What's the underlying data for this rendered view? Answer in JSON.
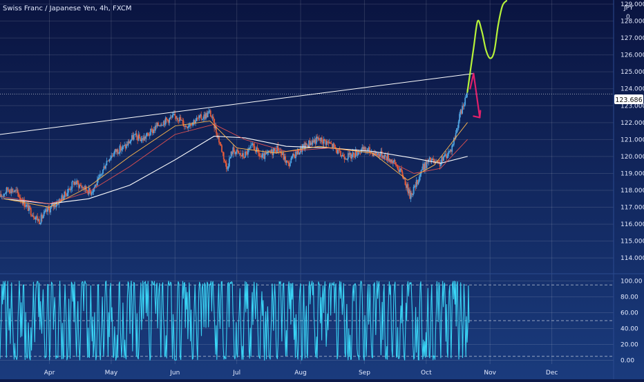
{
  "header": {
    "symbol_title": "Swiss Franc / Japanese Yen, 4h, FXCM",
    "currency": "JPY",
    "scale_mode": "0"
  },
  "colors": {
    "background_top": "#0a1440",
    "background_bottom": "#1a3b7d",
    "candle_up": "#4fa3e0",
    "candle_down": "#e25a3a",
    "ma_fast": "#ffb84d",
    "ma_mid": "#e05050",
    "ma_slow": "#ffffff",
    "trendline": "#ffffff",
    "projection_green": "#b6f23a",
    "projection_arrow": "#e0206a",
    "oscillator": "#3ad4f5",
    "price_label_bg": "#ffffff",
    "price_label_text": "#111111"
  },
  "chart_data": [
    {
      "type": "candlestick",
      "title": "",
      "ylim": [
        113.6,
        129.0
      ],
      "y_ticks": [
        "114.000",
        "115.000",
        "116.000",
        "117.000",
        "118.000",
        "119.000",
        "120.000",
        "121.000",
        "122.000",
        "123.000",
        "124.000",
        "125.000",
        "126.000",
        "127.000",
        "128.000",
        "129.000"
      ],
      "x_tick_labels": [
        "Apr",
        "May",
        "Jun",
        "Jul",
        "Aug",
        "Sep",
        "Oct",
        "Nov",
        "Dec"
      ],
      "x_range": [
        "2021-03-08",
        "2021-12-31"
      ],
      "last_price": "123.686",
      "price_path": [
        [
          "2021-03-08",
          117.6
        ],
        [
          "2021-03-12",
          118.1
        ],
        [
          "2021-03-16",
          117.9
        ],
        [
          "2021-03-20",
          117.2
        ],
        [
          "2021-03-24",
          116.6
        ],
        [
          "2021-03-27",
          116.2
        ],
        [
          "2021-03-31",
          116.8
        ],
        [
          "2021-04-05",
          117.3
        ],
        [
          "2021-04-09",
          117.8
        ],
        [
          "2021-04-13",
          118.5
        ],
        [
          "2021-04-17",
          118.2
        ],
        [
          "2021-04-21",
          117.9
        ],
        [
          "2021-04-25",
          118.6
        ],
        [
          "2021-04-29",
          119.8
        ],
        [
          "2021-05-03",
          120.3
        ],
        [
          "2021-05-08",
          120.6
        ],
        [
          "2021-05-12",
          121.2
        ],
        [
          "2021-05-16",
          121.0
        ],
        [
          "2021-05-20",
          121.4
        ],
        [
          "2021-05-25",
          122.0
        ],
        [
          "2021-05-29",
          122.2
        ],
        [
          "2021-06-02",
          122.4
        ],
        [
          "2021-06-06",
          121.8
        ],
        [
          "2021-06-10",
          122.1
        ],
        [
          "2021-06-14",
          122.3
        ],
        [
          "2021-06-18",
          122.6
        ],
        [
          "2021-06-21",
          121.5
        ],
        [
          "2021-06-24",
          120.3
        ],
        [
          "2021-06-26",
          119.3
        ],
        [
          "2021-06-29",
          120.4
        ],
        [
          "2021-07-04",
          120.0
        ],
        [
          "2021-07-09",
          120.6
        ],
        [
          "2021-07-13",
          119.9
        ],
        [
          "2021-07-17",
          120.2
        ],
        [
          "2021-07-21",
          120.5
        ],
        [
          "2021-07-26",
          119.5
        ],
        [
          "2021-07-29",
          120.1
        ],
        [
          "2021-08-01",
          120.4
        ],
        [
          "2021-08-05",
          120.8
        ],
        [
          "2021-08-09",
          121.0
        ],
        [
          "2021-08-13",
          120.9
        ],
        [
          "2021-08-17",
          120.6
        ],
        [
          "2021-08-20",
          120.1
        ],
        [
          "2021-08-25",
          120.0
        ],
        [
          "2021-08-29",
          120.3
        ],
        [
          "2021-09-02",
          120.4
        ],
        [
          "2021-09-06",
          120.2
        ],
        [
          "2021-09-10",
          120.1
        ],
        [
          "2021-09-14",
          119.8
        ],
        [
          "2021-09-17",
          119.4
        ],
        [
          "2021-09-20",
          118.8
        ],
        [
          "2021-09-23",
          117.7
        ],
        [
          "2021-09-26",
          118.3
        ],
        [
          "2021-09-29",
          119.3
        ],
        [
          "2021-10-03",
          119.8
        ],
        [
          "2021-10-07",
          119.5
        ],
        [
          "2021-10-10",
          120.0
        ],
        [
          "2021-10-13",
          120.4
        ],
        [
          "2021-10-15",
          121.2
        ],
        [
          "2021-10-17",
          122.3
        ],
        [
          "2021-10-19",
          123.0
        ],
        [
          "2021-10-21",
          123.7
        ]
      ],
      "ma_fast": [
        [
          "2021-03-10",
          117.5
        ],
        [
          "2021-04-01",
          117.0
        ],
        [
          "2021-04-20",
          118.2
        ],
        [
          "2021-05-10",
          120.0
        ],
        [
          "2021-06-01",
          121.8
        ],
        [
          "2021-06-18",
          122.1
        ],
        [
          "2021-07-01",
          120.5
        ],
        [
          "2021-07-20",
          120.2
        ],
        [
          "2021-08-10",
          120.6
        ],
        [
          "2021-09-05",
          120.2
        ],
        [
          "2021-09-22",
          118.6
        ],
        [
          "2021-10-05",
          119.5
        ],
        [
          "2021-10-21",
          122.0
        ]
      ],
      "ma_mid": [
        [
          "2021-03-10",
          117.6
        ],
        [
          "2021-04-01",
          117.2
        ],
        [
          "2021-04-20",
          117.9
        ],
        [
          "2021-05-10",
          119.4
        ],
        [
          "2021-06-01",
          121.3
        ],
        [
          "2021-06-20",
          121.9
        ],
        [
          "2021-07-05",
          121.0
        ],
        [
          "2021-07-25",
          120.3
        ],
        [
          "2021-08-15",
          120.5
        ],
        [
          "2021-09-05",
          120.2
        ],
        [
          "2021-09-25",
          119.0
        ],
        [
          "2021-10-08",
          119.3
        ],
        [
          "2021-10-21",
          121.0
        ]
      ],
      "ma_slow": [
        [
          "2021-03-10",
          117.5
        ],
        [
          "2021-04-01",
          117.2
        ],
        [
          "2021-04-20",
          117.5
        ],
        [
          "2021-05-10",
          118.3
        ],
        [
          "2021-06-01",
          119.8
        ],
        [
          "2021-06-20",
          121.2
        ],
        [
          "2021-07-05",
          121.1
        ],
        [
          "2021-07-25",
          120.6
        ],
        [
          "2021-08-15",
          120.5
        ],
        [
          "2021-09-05",
          120.3
        ],
        [
          "2021-09-25",
          119.9
        ],
        [
          "2021-10-08",
          119.6
        ],
        [
          "2021-10-21",
          120.0
        ]
      ],
      "trendline": [
        [
          "2021-03-08",
          121.3
        ],
        [
          "2021-10-24",
          124.9
        ]
      ],
      "projection_green": [
        [
          "2021-10-21",
          123.8
        ],
        [
          "2021-10-24",
          126.4
        ],
        [
          "2021-10-26",
          128.0
        ],
        [
          "2021-10-28",
          127.4
        ],
        [
          "2021-10-30",
          126.3
        ],
        [
          "2021-11-01",
          125.8
        ],
        [
          "2021-11-03",
          126.2
        ],
        [
          "2021-11-05",
          127.8
        ],
        [
          "2021-11-07",
          128.9
        ],
        [
          "2021-11-09",
          129.2
        ]
      ],
      "projection_arrow": [
        [
          "2021-10-24",
          124.9
        ],
        [
          "2021-10-27",
          122.3
        ]
      ]
    },
    {
      "type": "line",
      "title": "",
      "ylim": [
        -3,
        103
      ],
      "y_ticks": [
        "0.00",
        "20.00",
        "40.00",
        "60.00",
        "80.00",
        "100.00"
      ],
      "reference_lines": [
        5,
        50,
        95
      ],
      "x_end": "2021-10-22",
      "oscillator_seed": 17
    }
  ]
}
